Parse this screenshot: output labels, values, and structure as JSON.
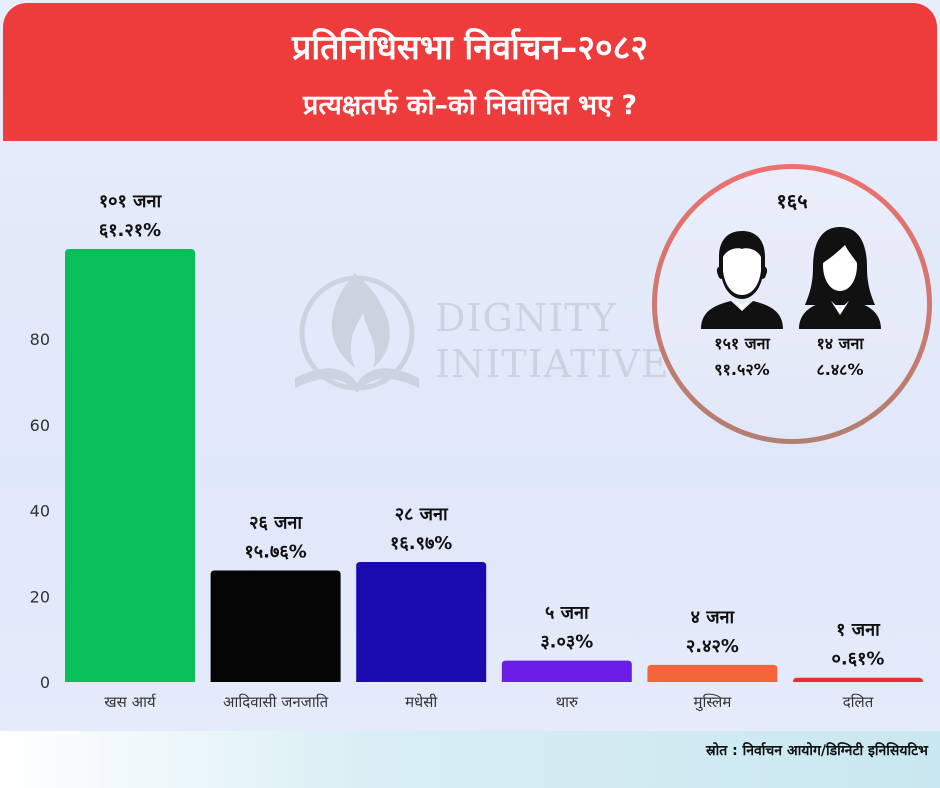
{
  "header": {
    "title": "प्रतिनिधिसभा निर्वाचन–२०८२",
    "subtitle": "प्रत्यक्षतर्फ को–को निर्वाचित भए ?"
  },
  "chart_data": {
    "type": "bar",
    "categories": [
      "खस आर्य",
      "आदिवासी जनजाति",
      "मधेसी",
      "थारु",
      "मुस्लिम",
      "दलित"
    ],
    "values": [
      101,
      26,
      28,
      5,
      4,
      1
    ],
    "count_labels": [
      "१०१ जना",
      "२६ जना",
      "२८ जना",
      "५ जना",
      "४ जना",
      "१ जना"
    ],
    "percent_labels": [
      "६१.२१%",
      "१५.७६%",
      "१६.९७%",
      "३.०३%",
      "२.४२%",
      "०.६१%"
    ],
    "colors": [
      "#08bf5a",
      "#050505",
      "#1a0bb0",
      "#6a1ee6",
      "#f4663a",
      "#ea2e2e"
    ],
    "yticks": [
      0,
      20,
      40,
      60,
      80
    ],
    "ylim": [
      0,
      101
    ],
    "grid": false,
    "xlabel": "",
    "ylabel": ""
  },
  "gender": {
    "total": "१६५",
    "male": {
      "count": "१५१ जना",
      "percent": "९१.५२%",
      "icon": "male-person-icon"
    },
    "female": {
      "count": "१४ जना",
      "percent": "८.४८%",
      "icon": "female-person-icon"
    }
  },
  "watermark": {
    "line1": "DIGNITY",
    "line2": "INITIATIVE"
  },
  "footer": {
    "source": "स्रोत : निर्वाचन आयोग/डिग्निटी इनिसियटिभ"
  }
}
